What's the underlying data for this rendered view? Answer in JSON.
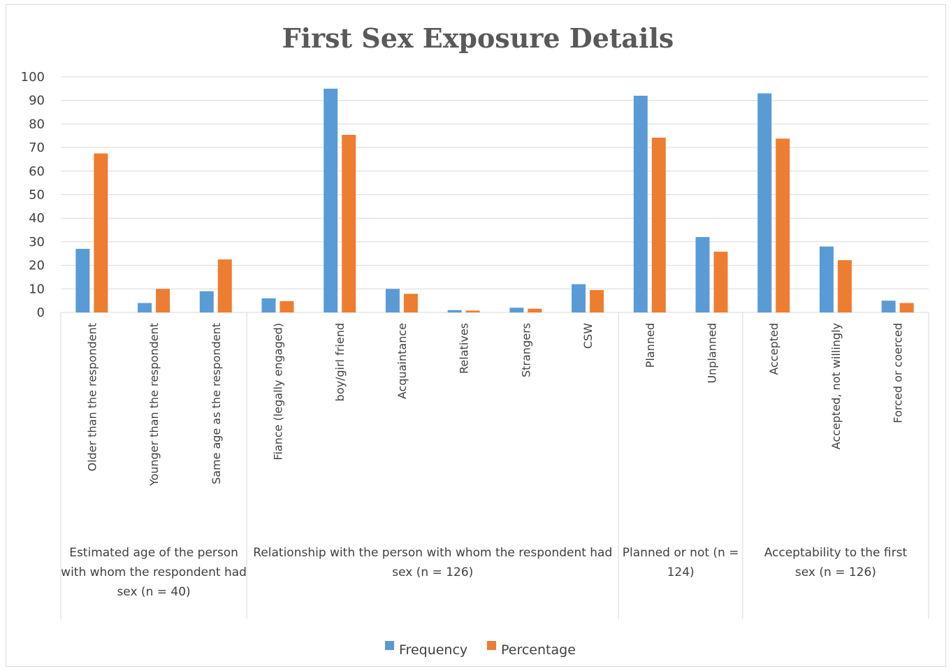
{
  "chart_data": {
    "type": "bar",
    "title": "First Sex Exposure Details",
    "ylim": [
      0,
      100
    ],
    "yticks": [
      0,
      10,
      20,
      30,
      40,
      50,
      60,
      70,
      80,
      90,
      100
    ],
    "grid": true,
    "legend_position": "bottom",
    "categories": [
      "Older than the respondent",
      "Younger than the respondent",
      "Same age as the respondent",
      "Fiance (legally engaged)",
      "boy/girl friend",
      "Acquaintance",
      "Relatives",
      "Strangers",
      "CSW",
      "Planned",
      "Unplanned",
      "Accepted",
      "Accepted, not willingly",
      "Forced or coerced"
    ],
    "groups": [
      {
        "label": "Estimated age of the person with whom the respondent had sex (n = 40)",
        "start": 0,
        "count": 3
      },
      {
        "label": "Relationship with the person with whom the respondent had sex (n = 126)",
        "start": 3,
        "count": 6
      },
      {
        "label": "Planned or not (n = 124)",
        "start": 9,
        "count": 2
      },
      {
        "label": "Acceptability to the first sex (n = 126)",
        "start": 11,
        "count": 3
      }
    ],
    "series": [
      {
        "name": "Frequency",
        "color": "#5b9bd5",
        "values": [
          27,
          4,
          9,
          6,
          95,
          10,
          1,
          2,
          12,
          92,
          32,
          93,
          28,
          5
        ]
      },
      {
        "name": "Percentage",
        "color": "#ed7d31",
        "values": [
          67.5,
          10,
          22.5,
          4.8,
          75.4,
          7.9,
          0.8,
          1.6,
          9.5,
          74.2,
          25.8,
          73.8,
          22.2,
          4
        ]
      }
    ]
  }
}
